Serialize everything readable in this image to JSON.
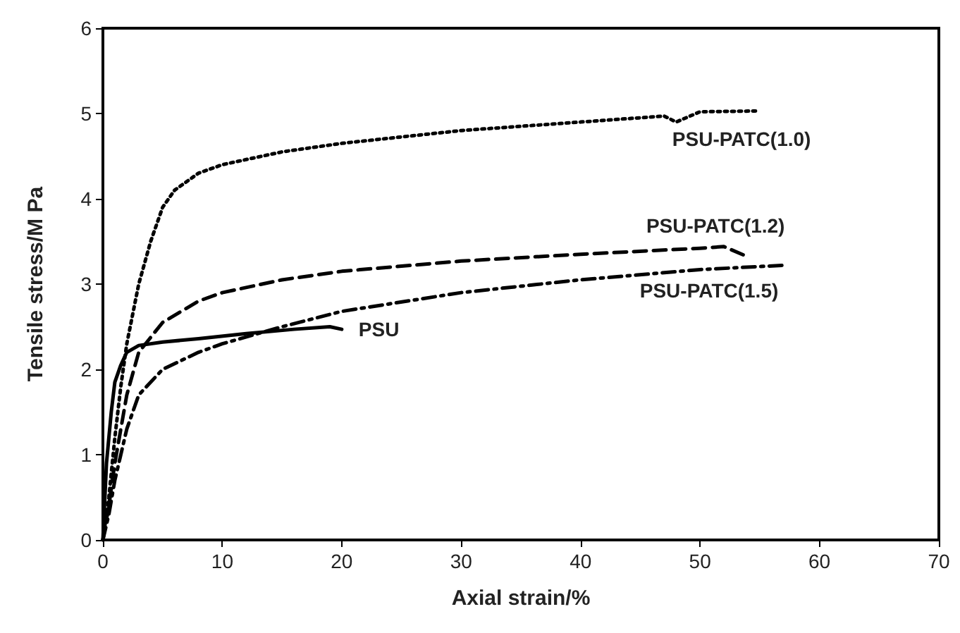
{
  "chart_data": {
    "type": "line",
    "xlabel": "Axial strain/%",
    "ylabel": "Tensile stress/M Pa",
    "xlim": [
      0,
      70
    ],
    "xticks": [
      0,
      10,
      20,
      30,
      40,
      50,
      60,
      70
    ],
    "ylim": [
      0,
      6
    ],
    "yticks": [
      0,
      1,
      2,
      3,
      4,
      5,
      6
    ],
    "grid": false,
    "legend": false,
    "marker": "none",
    "series": [
      {
        "name": "PSU",
        "color": "#000000",
        "line_style": "solid",
        "x": [
          0,
          0.3,
          0.7,
          1,
          1.5,
          2,
          3,
          5,
          8,
          12,
          16,
          19,
          20
        ],
        "values": [
          0,
          0.9,
          1.5,
          1.85,
          2.05,
          2.2,
          2.28,
          2.32,
          2.36,
          2.42,
          2.47,
          2.5,
          2.47
        ]
      },
      {
        "name": "PSU-PATC(1.0)",
        "color": "#000000",
        "line_style": "dotted",
        "x": [
          0,
          0.5,
          1,
          1.5,
          2,
          3,
          4,
          5,
          6,
          8,
          10,
          15,
          20,
          30,
          40,
          47,
          48,
          50,
          55
        ],
        "values": [
          0,
          0.5,
          1.2,
          1.8,
          2.3,
          3.0,
          3.5,
          3.9,
          4.1,
          4.3,
          4.4,
          4.55,
          4.65,
          4.8,
          4.9,
          4.97,
          4.9,
          5.02,
          5.03
        ]
      },
      {
        "name": "PSU-PATC(1.2)",
        "color": "#000000",
        "line_style": "dashed",
        "x": [
          0,
          0.5,
          1,
          2,
          3,
          5,
          8,
          10,
          15,
          20,
          30,
          40,
          50,
          52,
          54
        ],
        "values": [
          0,
          0.4,
          0.9,
          1.7,
          2.2,
          2.55,
          2.8,
          2.9,
          3.05,
          3.15,
          3.27,
          3.35,
          3.42,
          3.44,
          3.32
        ]
      },
      {
        "name": "PSU-PATC(1.5)",
        "color": "#000000",
        "line_style": "dashdot",
        "x": [
          0,
          0.5,
          1,
          2,
          3,
          5,
          8,
          10,
          15,
          20,
          30,
          40,
          50,
          57
        ],
        "values": [
          0,
          0.3,
          0.7,
          1.3,
          1.7,
          2.0,
          2.2,
          2.3,
          2.5,
          2.68,
          2.9,
          3.05,
          3.17,
          3.22
        ]
      }
    ]
  }
}
